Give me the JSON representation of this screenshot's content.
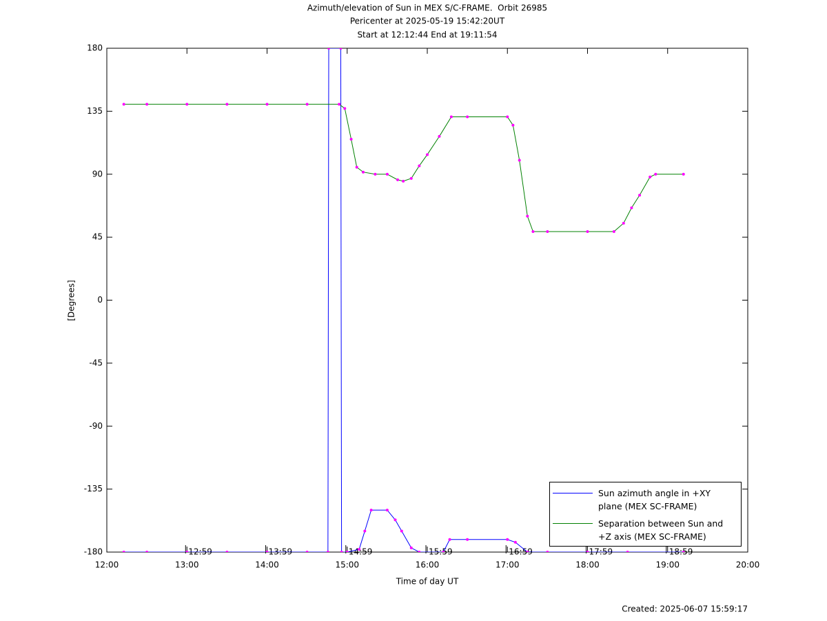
{
  "chart_data": {
    "type": "line",
    "title": "Azimuth/elevation of Sun in MEX S/C-FRAME.  Orbit 26985",
    "subtitle": [
      "Pericenter at 2025-05-19 15:42:20UT",
      "Start at 12:12:44 End at 19:11:54"
    ],
    "x_label": "Time of day UT",
    "y_label": "[Degrees]",
    "footer": "Created: 2025-06-07 15:59:17",
    "xlim": [
      12,
      20
    ],
    "xticks": [
      {
        "value": 12,
        "label": "12:00"
      },
      {
        "value": 13,
        "label": "13:00"
      },
      {
        "value": 14,
        "label": "14:00"
      },
      {
        "value": 15,
        "label": "15:00"
      },
      {
        "value": 16,
        "label": "16:00"
      },
      {
        "value": 17,
        "label": "17:00"
      },
      {
        "value": 18,
        "label": "18:00"
      },
      {
        "value": 19,
        "label": "19:00"
      },
      {
        "value": 20,
        "label": "20:00"
      }
    ],
    "ylim": [
      -180,
      180
    ],
    "yticks": [
      180,
      135,
      90,
      45,
      0,
      -45,
      -90,
      -135,
      -180
    ],
    "time_markers": [
      {
        "value": 12.983,
        "label": "12:59"
      },
      {
        "value": 13.983,
        "label": "13:59"
      },
      {
        "value": 14.983,
        "label": "14:59"
      },
      {
        "value": 15.983,
        "label": "15:59"
      },
      {
        "value": 16.983,
        "label": "16:59"
      },
      {
        "value": 17.983,
        "label": "17:59"
      },
      {
        "value": 18.983,
        "label": "18:59"
      }
    ],
    "marker_color": "#ff00ff",
    "grid": false,
    "series": [
      {
        "name": "Sun azimuth angle in +XY plane (MEX SC-FRAME)",
        "color": "#0000ff",
        "x": [
          12.212,
          12.5,
          13,
          13.5,
          14,
          14.5,
          14.76,
          14.77,
          14.92,
          14.93,
          15.0,
          15.15,
          15.22,
          15.3,
          15.5,
          15.6,
          15.68,
          15.8,
          15.9,
          16.2,
          16.28,
          16.5,
          17.0,
          17.1,
          17.25,
          17.5,
          18,
          18.5,
          19.198
        ],
        "values": [
          -180,
          -180,
          -180,
          -180,
          -180,
          -180,
          -180,
          180,
          180,
          -180,
          -180,
          -178,
          -165,
          -150,
          -150,
          -157,
          -165,
          -177,
          -180,
          -180,
          -171,
          -171,
          -171,
          -173,
          -180,
          -180,
          -180,
          -180,
          -180
        ]
      },
      {
        "name": "Separation between Sun and +Z axis (MEX SC-FRAME)",
        "color": "#008000",
        "x": [
          12.212,
          12.5,
          13,
          13.5,
          14,
          14.5,
          14.9,
          14.97,
          15.05,
          15.12,
          15.2,
          15.35,
          15.5,
          15.63,
          15.7,
          15.8,
          15.9,
          16.0,
          16.15,
          16.3,
          16.5,
          17.0,
          17.07,
          17.15,
          17.25,
          17.32,
          17.5,
          18.0,
          18.33,
          18.45,
          18.55,
          18.65,
          18.78,
          18.85,
          19.198
        ],
        "values": [
          140,
          140,
          140,
          140,
          140,
          140,
          140,
          137,
          115,
          95,
          91.5,
          90,
          90,
          86,
          85,
          87,
          96,
          104,
          117,
          131,
          131,
          131,
          125,
          100,
          60,
          49,
          49,
          49,
          49,
          55,
          66,
          75,
          88,
          90,
          90
        ]
      }
    ]
  }
}
